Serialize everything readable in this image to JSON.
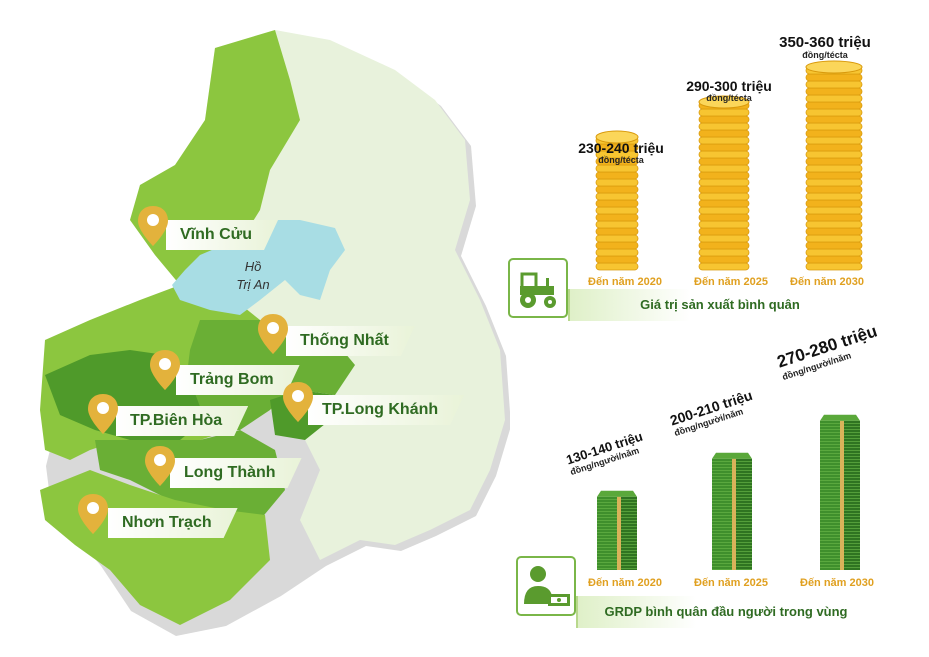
{
  "map": {
    "lake_label_line1": "Hồ",
    "lake_label_line2": "Trị An",
    "districts": [
      {
        "name": "Vĩnh Cửu"
      },
      {
        "name": "Thống Nhất"
      },
      {
        "name": "Trảng Bom"
      },
      {
        "name": "TP.Biên Hòa"
      },
      {
        "name": "TP.Long Khánh"
      },
      {
        "name": "Long Thành"
      },
      {
        "name": "Nhơn Trạch"
      }
    ],
    "colors": {
      "light_region": "#e8f2dc",
      "mid_green": "#8cc63f",
      "dark_green": "#4f9a2a",
      "lake": "#a8dde4",
      "pin": "#e3b23c"
    }
  },
  "production_chart": {
    "title": "Giá trị sản xuất bình quân",
    "icon": "tractor-icon",
    "bars": [
      {
        "value": "230-240 triệu",
        "unit": "đồng/técta",
        "year": "Đến năm 2020"
      },
      {
        "value": "290-300 triệu",
        "unit": "đồng/técta",
        "year": "Đến năm 2025"
      },
      {
        "value": "350-360 triệu",
        "unit": "đồng/técta",
        "year": "Đến năm 2030"
      }
    ]
  },
  "grdp_chart": {
    "title": "GRDP bình quân đầu người trong vùng",
    "icon": "person-money-icon",
    "bars": [
      {
        "value": "130-140 triệu",
        "unit": "đồng/người/năm",
        "year": "Đến năm 2020"
      },
      {
        "value": "200-210 triệu",
        "unit": "đồng/người/năm",
        "year": "Đến năm 2025"
      },
      {
        "value": "270-280 triệu",
        "unit": "đồng/người/năm",
        "year": "Đến năm 2030"
      }
    ]
  },
  "chart_data": [
    {
      "type": "bar",
      "title": "Giá trị sản xuất bình quân",
      "categories": [
        "Đến năm 2020",
        "Đến năm 2025",
        "Đến năm 2030"
      ],
      "values": [
        235,
        295,
        355
      ],
      "labels": [
        "230-240 triệu",
        "290-300 triệu",
        "350-360 triệu"
      ],
      "ylabel": "đồng/técta"
    },
    {
      "type": "bar",
      "title": "GRDP bình quân đầu người trong vùng",
      "categories": [
        "Đến năm 2020",
        "Đến năm 2025",
        "Đến năm 2030"
      ],
      "values": [
        135,
        205,
        275
      ],
      "labels": [
        "130-140 triệu",
        "200-210 triệu",
        "270-280 triệu"
      ],
      "ylabel": "đồng/người/năm"
    }
  ]
}
